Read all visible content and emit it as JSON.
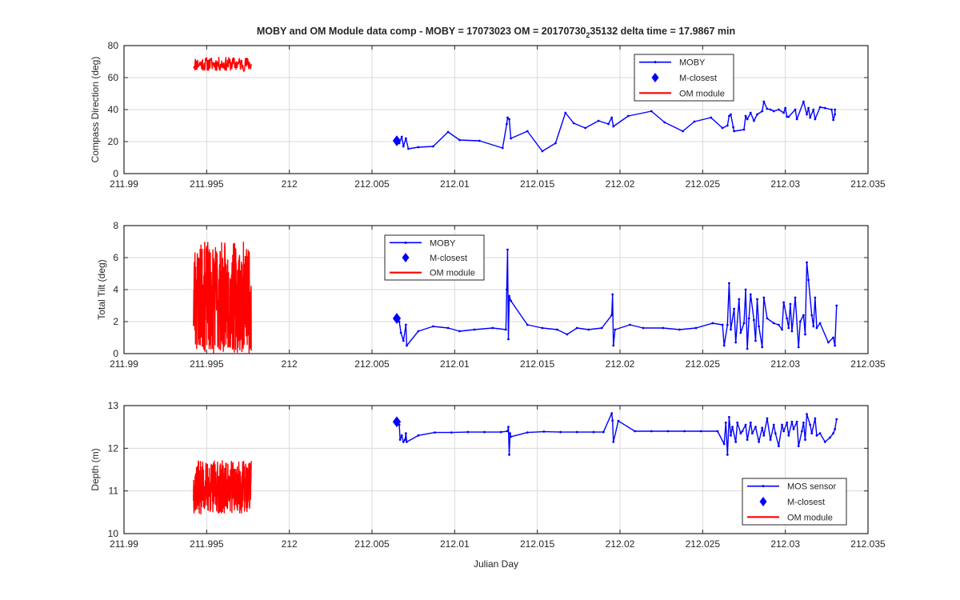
{
  "figure": {
    "title_main": "MOBY and OM Module data comp - MOBY = 17073023 OM = 20170730",
    "title_sub": "2",
    "title_tail": "35132 delta time = 17.9867 min",
    "xlabel": "Julian Day"
  },
  "colors": {
    "moby": "#0000ff",
    "om": "#ff0000",
    "grid": "#d9d9d9",
    "axis": "#262626"
  },
  "chart_data": [
    {
      "type": "line",
      "ylabel": "Compass Direction (deg)",
      "xlim": [
        211.99,
        212.035
      ],
      "ylim": [
        0,
        80
      ],
      "xticks": [
        211.99,
        211.995,
        212,
        212.005,
        212.01,
        212.015,
        212.02,
        212.025,
        212.03,
        212.035
      ],
      "xtick_labels": [
        "211.99",
        "211.995",
        "212",
        "212.005",
        "212.01",
        "212.015",
        "212.02",
        "212.025",
        "212.03",
        "212.035"
      ],
      "yticks": [
        0,
        20,
        40,
        60,
        80
      ],
      "ytick_labels": [
        "0",
        "20",
        "40",
        "60",
        "80"
      ],
      "grid": true,
      "legend_position": "top-right",
      "legend": [
        "MOBY",
        "M-closest",
        "OM module"
      ],
      "series": [
        {
          "name": "MOBY",
          "x": [
            212.00665,
            212.0068,
            212.0069,
            212.00705,
            212.0072,
            212.0078,
            212.0087,
            212.0096,
            212.0103,
            212.0115,
            212.0129,
            212.01315,
            212.0132,
            212.0133,
            212.0134,
            212.0144,
            212.0153,
            212.0161,
            212.0167,
            212.0172,
            212.0179,
            212.0187,
            212.0193,
            212.0195,
            212.0196,
            212.0205,
            212.0219,
            212.0227,
            212.0238,
            212.0245,
            212.0255,
            212.0262,
            212.0265,
            212.0266,
            212.0267,
            212.02685,
            212.0269,
            212.0275,
            212.0276,
            212.0277,
            212.0279,
            212.0281,
            212.0283,
            212.0286,
            212.0287,
            212.0289,
            212.0291,
            212.0293,
            212.0296,
            212.0299,
            212.03,
            212.0301,
            212.0302,
            212.0306,
            212.0307,
            212.0311,
            212.0313,
            212.0314,
            212.0315,
            212.0317,
            212.0318,
            212.0321,
            212.0324,
            212.0328,
            212.0329,
            212.033,
            212.033
          ],
          "y": [
            19,
            23,
            17,
            22,
            15.5,
            16.5,
            17,
            26,
            21,
            20.5,
            16,
            31,
            35,
            34,
            22,
            26.5,
            14,
            19,
            38,
            31.5,
            28.5,
            33,
            31,
            35,
            29.5,
            36,
            39,
            32,
            26.5,
            32.5,
            35,
            28.5,
            30,
            36,
            37,
            29,
            26.5,
            27.5,
            36,
            34,
            38,
            33,
            37,
            39,
            45,
            40.5,
            40,
            39,
            40,
            38,
            41,
            35.5,
            35.5,
            40,
            34,
            45,
            37,
            41,
            35,
            40,
            34,
            41.5,
            41,
            40,
            33.5,
            37,
            40
          ]
        },
        {
          "name": "M-closest",
          "x": [
            212.0065
          ],
          "y": [
            20.5
          ]
        },
        {
          "name": "OM module",
          "x_range": [
            211.9942,
            211.9977
          ],
          "y_min": 64,
          "y_max": 73,
          "samples": 140,
          "seed": 11
        }
      ]
    },
    {
      "type": "line",
      "ylabel": "Total Tilt (deg)",
      "xlim": [
        211.99,
        212.035
      ],
      "ylim": [
        0,
        8
      ],
      "xticks": [
        211.99,
        211.995,
        212,
        212.005,
        212.01,
        212.015,
        212.02,
        212.025,
        212.03,
        212.035
      ],
      "xtick_labels": [
        "211.99",
        "211.995",
        "212",
        "212.005",
        "212.01",
        "212.015",
        "212.02",
        "212.025",
        "212.03",
        "212.035"
      ],
      "yticks": [
        0,
        2,
        4,
        6,
        8
      ],
      "ytick_labels": [
        "0",
        "2",
        "4",
        "6",
        "8"
      ],
      "grid": true,
      "legend_position": "top-center",
      "legend": [
        "MOBY",
        "M-closest",
        "OM module"
      ],
      "series": [
        {
          "name": "MOBY",
          "x": [
            212.00665,
            212.00675,
            212.0069,
            212.00705,
            212.0071,
            212.0078,
            212.0087,
            212.0096,
            212.0103,
            212.0112,
            212.0123,
            212.0131,
            212.01315,
            212.0132,
            212.01325,
            212.0133,
            212.0134,
            212.0144,
            212.0153,
            212.0162,
            212.0168,
            212.0174,
            212.0181,
            212.0189,
            212.0195,
            212.01955,
            212.0196,
            212.0197,
            212.0206,
            212.0214,
            212.0226,
            212.0236,
            212.0246,
            212.0256,
            212.0262,
            212.0263,
            212.0265,
            212.0266,
            212.0267,
            212.0269,
            212.027,
            212.0272,
            212.0273,
            212.0275,
            212.0276,
            212.0277,
            212.0278,
            212.0279,
            212.0281,
            212.0282,
            212.0283,
            212.0284,
            212.0286,
            212.0287,
            212.0289,
            212.0293,
            212.0296,
            212.0298,
            212.0299,
            212.0301,
            212.0302,
            212.0303,
            212.0304,
            212.0306,
            212.0308,
            212.0309,
            212.0311,
            212.0312,
            212.0313,
            212.0314,
            212.0316,
            212.0317,
            212.0318,
            212.0319,
            212.0321,
            212.0326,
            212.0329,
            212.033,
            212.0331
          ],
          "y": [
            2,
            1.3,
            0.8,
            1.8,
            0.5,
            1.4,
            1.7,
            1.6,
            1.4,
            1.5,
            1.6,
            1.5,
            4,
            6.5,
            0.9,
            3.6,
            3.3,
            1.8,
            1.6,
            1.5,
            1.2,
            1.6,
            1.5,
            1.6,
            2.4,
            3.7,
            0.5,
            1.5,
            1.8,
            1.6,
            1.6,
            1.5,
            1.6,
            1.9,
            1.8,
            0.5,
            1.8,
            4.4,
            1.5,
            2.8,
            0.7,
            3.4,
            1.3,
            1.9,
            4,
            0.3,
            2.2,
            3.7,
            2.1,
            0.8,
            3.4,
            1.7,
            0.4,
            3.5,
            2.2,
            1.9,
            1.8,
            1.5,
            3.2,
            2.2,
            1.6,
            3.1,
            1.4,
            3.5,
            0.4,
            2,
            2.4,
            1.2,
            5.7,
            4.6,
            2.4,
            1.7,
            3.5,
            1.6,
            1.9,
            0.7,
            1,
            0.5,
            3
          ]
        },
        {
          "name": "M-closest",
          "x": [
            212.0065
          ],
          "y": [
            2.2
          ]
        },
        {
          "name": "OM module",
          "x_range": [
            211.9942,
            211.9977
          ],
          "y_min": 0,
          "y_max": 7,
          "samples": 340,
          "seed": 23
        }
      ]
    },
    {
      "type": "line",
      "ylabel": "Depth (m)",
      "xlim": [
        211.99,
        212.035
      ],
      "ylim": [
        10,
        13
      ],
      "xticks": [
        211.99,
        211.995,
        212,
        212.005,
        212.01,
        212.015,
        212.02,
        212.025,
        212.03,
        212.035
      ],
      "xtick_labels": [
        "211.99",
        "211.995",
        "212",
        "212.005",
        "212.01",
        "212.015",
        "212.02",
        "212.025",
        "212.03",
        "212.035"
      ],
      "yticks": [
        10,
        11,
        12,
        13
      ],
      "ytick_labels": [
        "10",
        "11",
        "12",
        "13"
      ],
      "grid": true,
      "legend_position": "bottom-right",
      "legend": [
        "MOS sensor",
        "M-closest",
        "OM module"
      ],
      "series": [
        {
          "name": "MOS sensor",
          "x": [
            212.00665,
            212.0067,
            212.0068,
            212.0069,
            212.007,
            212.00705,
            212.0071,
            212.0078,
            212.0088,
            212.0098,
            212.0108,
            212.0118,
            212.0128,
            212.0132,
            212.01325,
            212.0133,
            212.01335,
            212.0134,
            212.0144,
            212.0154,
            212.0164,
            212.0174,
            212.0184,
            212.019,
            212.0195,
            212.01955,
            212.0196,
            212.0199,
            212.0209,
            212.0219,
            212.0229,
            212.0239,
            212.0249,
            212.0259,
            212.0263,
            212.0264,
            212.0265,
            212.0266,
            212.0267,
            212.0268,
            212.027,
            212.0271,
            212.0273,
            212.0274,
            212.0276,
            212.0277,
            212.0279,
            212.028,
            212.0282,
            212.0284,
            212.0286,
            212.0287,
            212.0289,
            212.0291,
            212.0293,
            212.0294,
            212.0296,
            212.0298,
            212.0299,
            212.0301,
            212.0302,
            212.0304,
            212.0305,
            212.0307,
            212.0308,
            212.031,
            212.0311,
            212.0312,
            212.0313,
            212.0315,
            212.0316,
            212.0318,
            212.0319,
            212.0321,
            212.0324,
            212.0327,
            212.0329,
            212.033,
            212.0331
          ],
          "y": [
            12.55,
            12.2,
            12.3,
            12.15,
            12.2,
            12.35,
            12.15,
            12.3,
            12.37,
            12.37,
            12.38,
            12.38,
            12.38,
            12.4,
            12.5,
            11.85,
            12.35,
            12.27,
            12.37,
            12.39,
            12.38,
            12.38,
            12.38,
            12.38,
            12.82,
            12.65,
            12.15,
            12.64,
            12.4,
            12.4,
            12.4,
            12.4,
            12.4,
            12.4,
            12.1,
            12.6,
            11.85,
            12.73,
            12.3,
            12.5,
            12.15,
            12.6,
            12.35,
            12.4,
            12.55,
            12.2,
            12.6,
            12.35,
            12.5,
            12.15,
            12.48,
            12.3,
            12.7,
            12.2,
            12.55,
            12.35,
            12.05,
            12.55,
            12.4,
            12.6,
            12.3,
            12.62,
            12.45,
            12.62,
            12.05,
            12.4,
            12.6,
            12.2,
            12.8,
            12.55,
            12.35,
            12.7,
            12.3,
            12.35,
            12.15,
            12.25,
            12.35,
            12.45,
            12.68
          ]
        },
        {
          "name": "M-closest",
          "x": [
            212.0065
          ],
          "y": [
            12.62
          ]
        },
        {
          "name": "OM module",
          "x_range": [
            211.9942,
            211.9977
          ],
          "y_min": 10.45,
          "y_max": 11.72,
          "samples": 320,
          "seed": 37
        }
      ]
    }
  ]
}
